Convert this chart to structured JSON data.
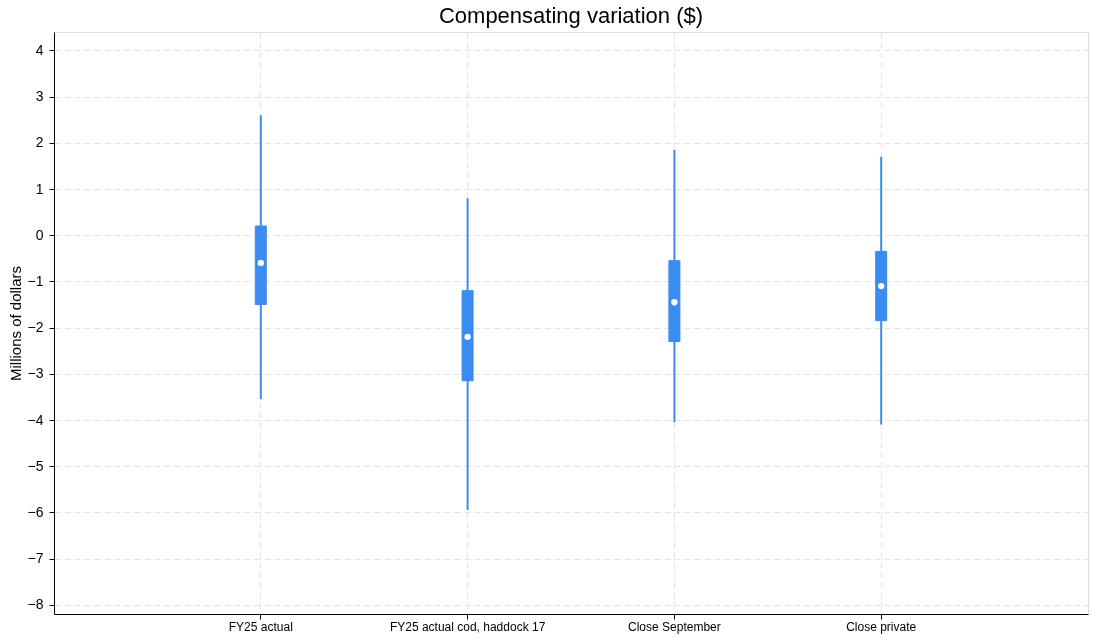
{
  "chart_data": {
    "type": "box",
    "title": "Compensating variation ($)",
    "ylabel": "Millions of dollars",
    "categories": [
      "FY25 actual",
      "FY25 actual cod, haddock 17",
      "Close September",
      "Close private"
    ],
    "boxes": [
      {
        "low": -3.55,
        "q1": -1.5,
        "median": -0.6,
        "q3": 0.2,
        "high": 2.6
      },
      {
        "low": -5.95,
        "q1": -3.15,
        "median": -2.2,
        "q3": -1.2,
        "high": 0.8
      },
      {
        "low": -4.05,
        "q1": -2.3,
        "median": -1.45,
        "q3": -0.55,
        "high": 1.85
      },
      {
        "low": -4.1,
        "q1": -1.85,
        "median": -1.1,
        "q3": -0.35,
        "high": 1.7
      }
    ],
    "color": "#3a8df0",
    "ylim": [
      -8.2,
      4.4
    ],
    "yticks": [
      -8,
      -7,
      -6,
      -5,
      -4,
      -3,
      -2,
      -1,
      0,
      1,
      2,
      3,
      4
    ],
    "grid": true
  }
}
